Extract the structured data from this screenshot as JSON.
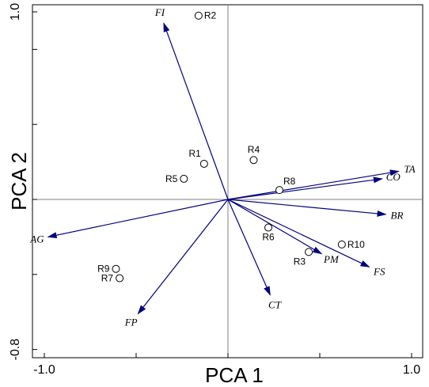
{
  "chart_data": {
    "type": "scatter",
    "title": "",
    "xlabel": "PCA 1",
    "ylabel": "PCA 2",
    "xlim": [
      -1.05,
      1.05
    ],
    "ylim": [
      -0.87,
      1.03
    ],
    "x_ticks": [
      {
        "value": -1.0,
        "label": "-1.0"
      },
      {
        "value": 1.0,
        "label": "1.0"
      }
    ],
    "y_ticks": [
      {
        "value": 1.0,
        "label": "1.0"
      },
      {
        "value": -0.8,
        "label": "-0.8"
      }
    ],
    "reference_lines": {
      "x": 0,
      "y": 0
    },
    "grid": false,
    "legend": "none",
    "colors": {
      "vectors": "#000080",
      "points": "#000000",
      "axes": "#000000",
      "reference": "#808080"
    },
    "observations": [
      {
        "label": "R1",
        "x": -0.13,
        "y": 0.19
      },
      {
        "label": "R2",
        "x": -0.16,
        "y": 0.98
      },
      {
        "label": "R3",
        "x": 0.44,
        "y": -0.28
      },
      {
        "label": "R4",
        "x": 0.14,
        "y": 0.21
      },
      {
        "label": "R5",
        "x": -0.24,
        "y": 0.11
      },
      {
        "label": "R6",
        "x": 0.22,
        "y": -0.15
      },
      {
        "label": "R7",
        "x": -0.59,
        "y": -0.42
      },
      {
        "label": "R8",
        "x": 0.28,
        "y": 0.05
      },
      {
        "label": "R9",
        "x": -0.61,
        "y": -0.37
      },
      {
        "label": "R10",
        "x": 0.62,
        "y": -0.24
      }
    ],
    "vectors": [
      {
        "label": "FI",
        "x": -0.35,
        "y": 0.94
      },
      {
        "label": "TA",
        "x": 0.93,
        "y": 0.15
      },
      {
        "label": "CO",
        "x": 0.84,
        "y": 0.11
      },
      {
        "label": "BR",
        "x": 0.86,
        "y": -0.08
      },
      {
        "label": "FS",
        "x": 0.77,
        "y": -0.36
      },
      {
        "label": "PM",
        "x": 0.51,
        "y": -0.29
      },
      {
        "label": "CT",
        "x": 0.23,
        "y": -0.51
      },
      {
        "label": "FP",
        "x": -0.49,
        "y": -0.61
      },
      {
        "label": "AG",
        "x": -0.98,
        "y": -0.2
      }
    ]
  }
}
